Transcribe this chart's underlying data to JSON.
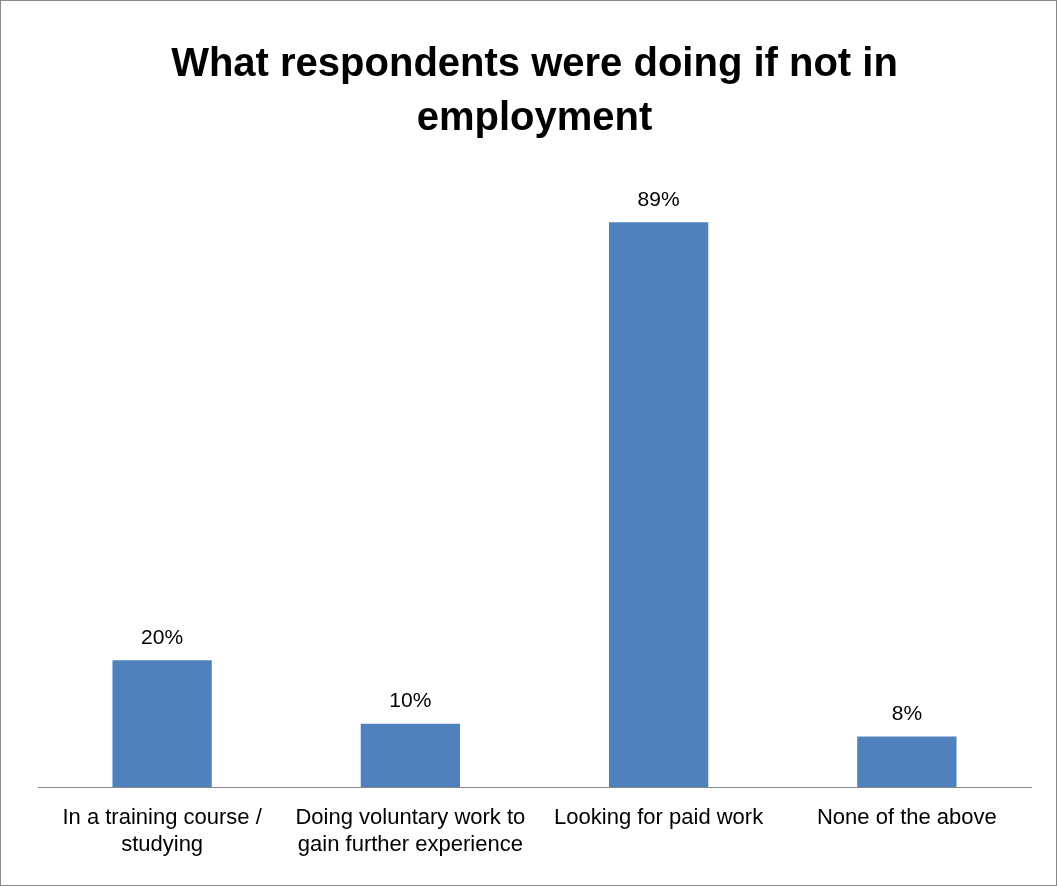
{
  "chart_data": {
    "type": "bar",
    "title": "What respondents were doing if not in employment",
    "categories": [
      "In a training course / studying",
      "Doing voluntary work to gain further experience",
      "Looking for paid work",
      "None of the above"
    ],
    "values": [
      20,
      10,
      89,
      8
    ],
    "value_labels": [
      "20%",
      "10%",
      "89%",
      "8%"
    ],
    "color": "#4f81bd",
    "grid": false,
    "legend": false
  }
}
